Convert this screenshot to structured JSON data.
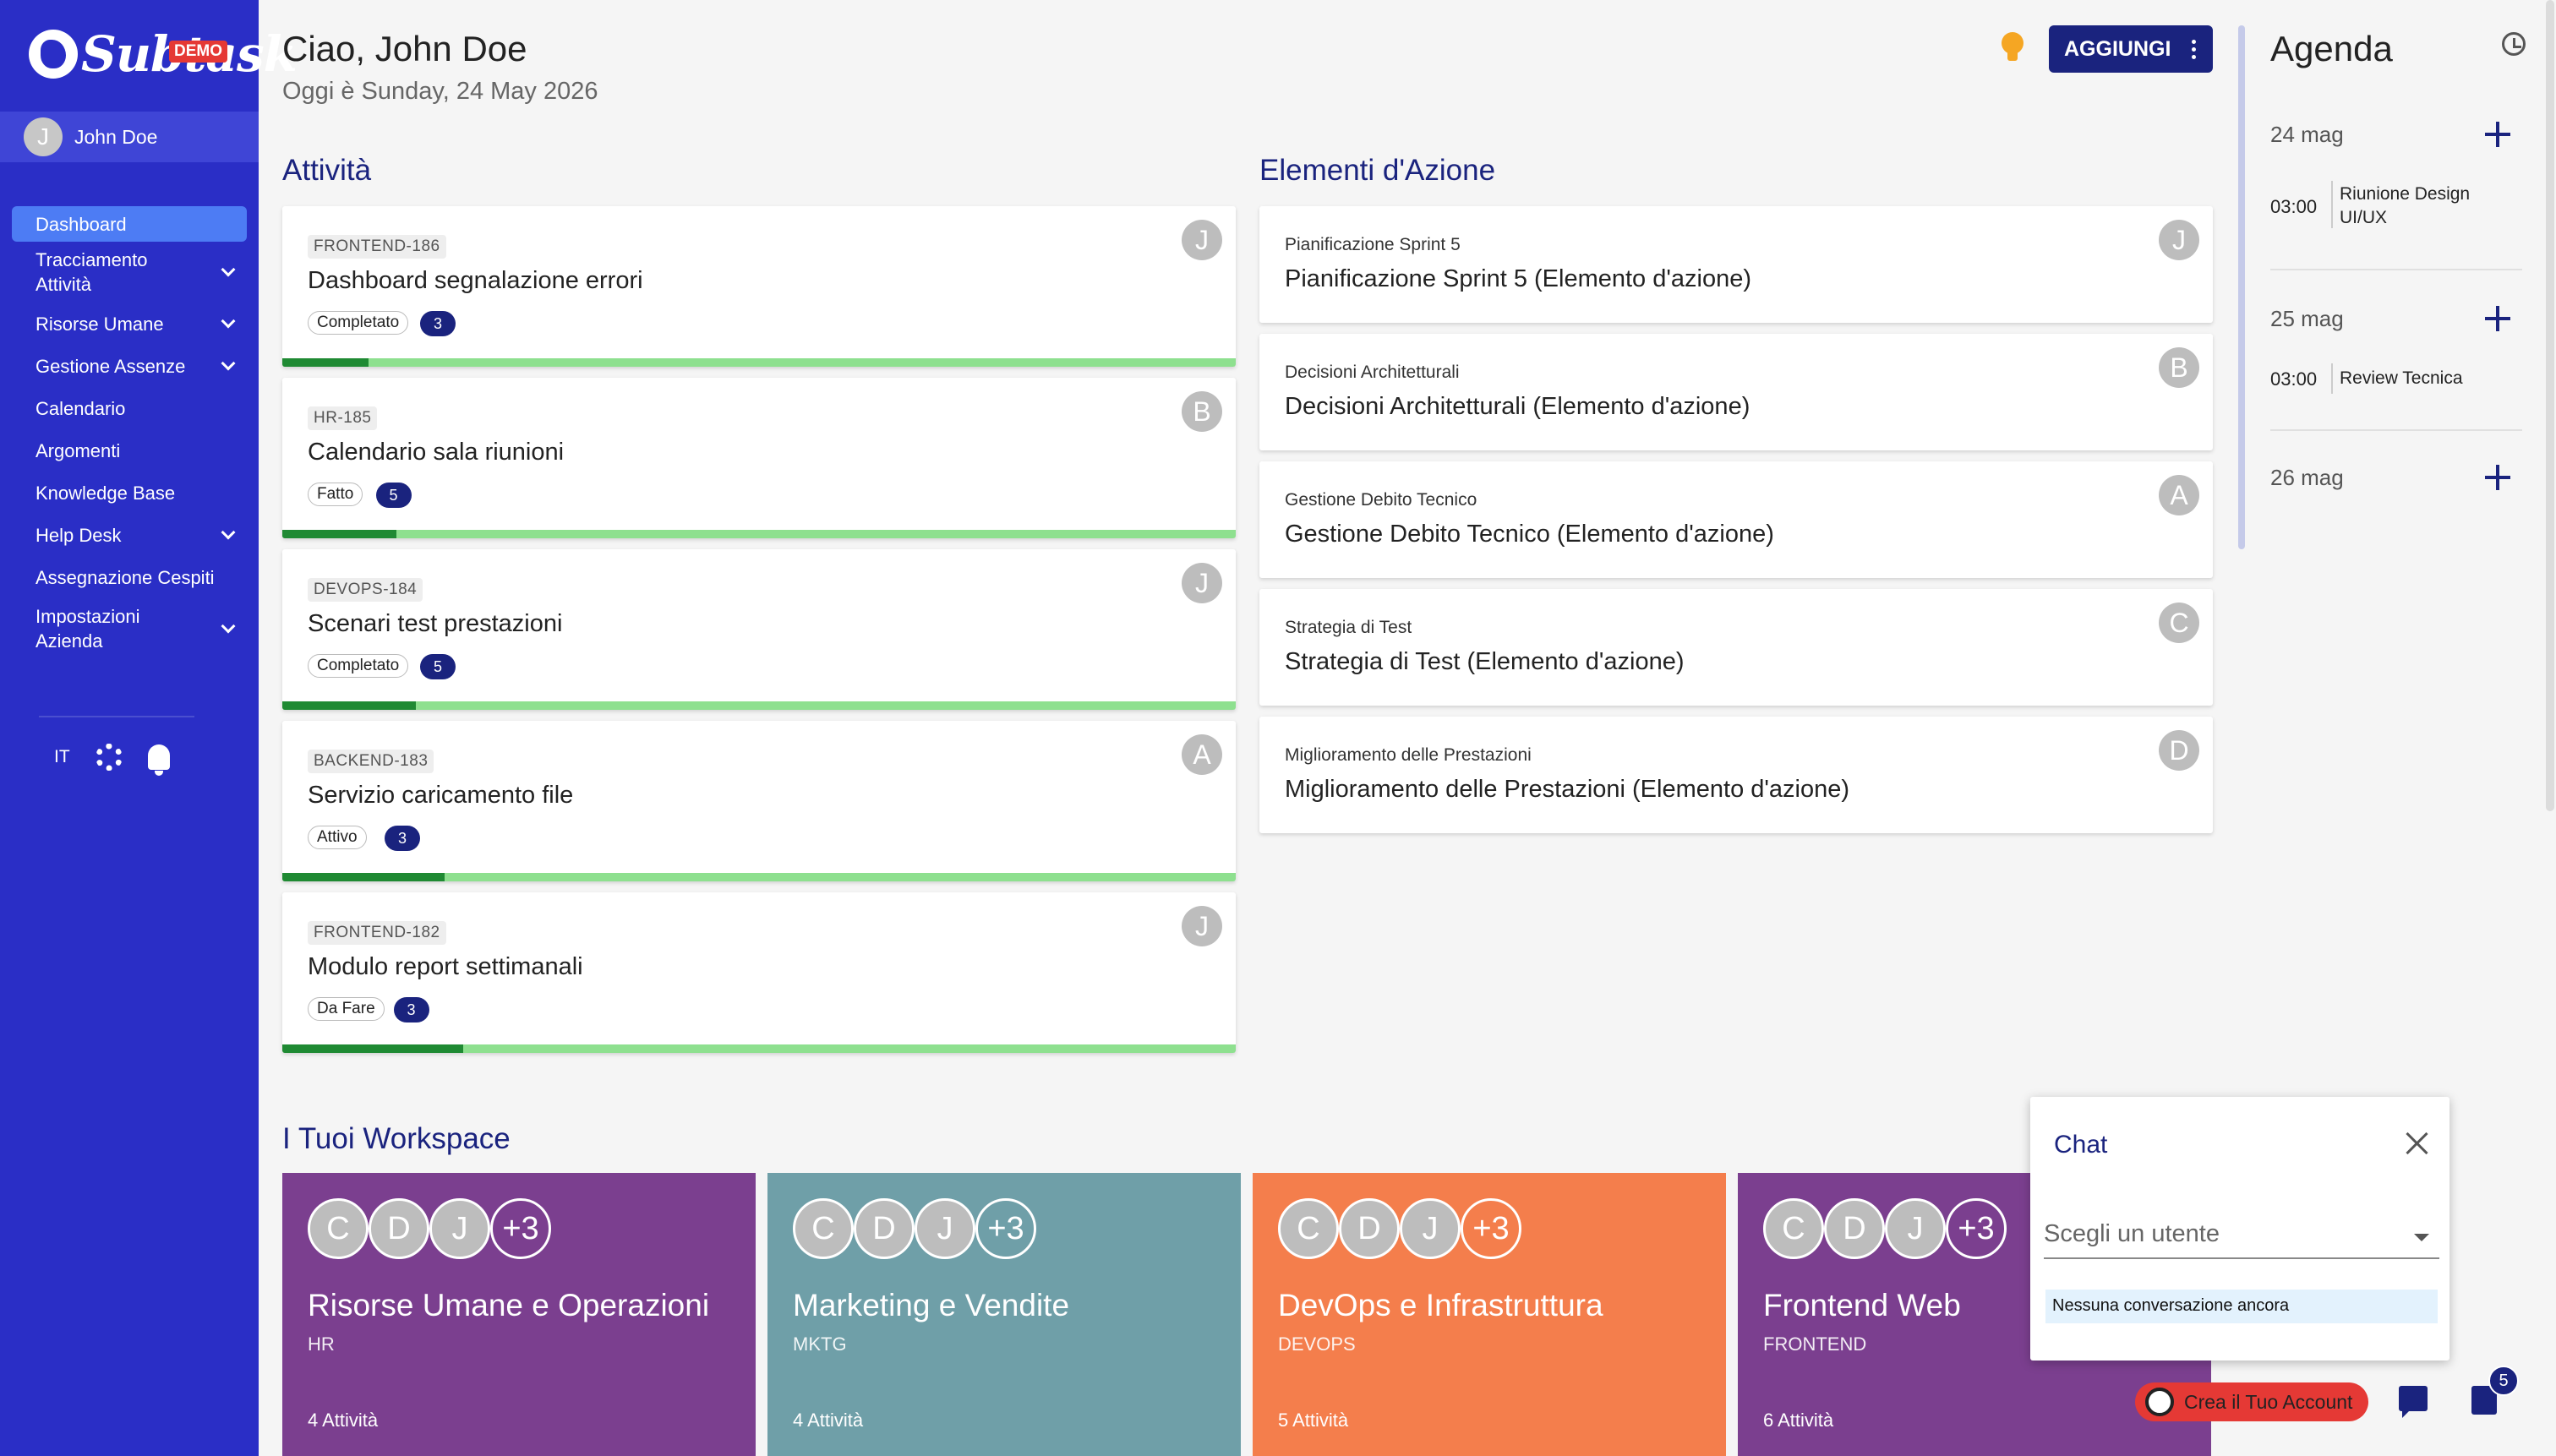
{
  "sidebar": {
    "logo_text": "Subtask",
    "logo_badge": "DEMO",
    "user": {
      "initial": "J",
      "name": "John Doe"
    },
    "items": [
      {
        "label": "Dashboard",
        "active": true
      },
      {
        "label": "Tracciamento Attività",
        "expandable": true
      },
      {
        "label": "Risorse Umane",
        "expandable": true
      },
      {
        "label": "Gestione Assenze",
        "expandable": true
      },
      {
        "label": "Calendario"
      },
      {
        "label": "Argomenti"
      },
      {
        "label": "Knowledge Base"
      },
      {
        "label": "Help Desk",
        "expandable": true
      },
      {
        "label": "Assegnazione Cespiti"
      },
      {
        "label": "Impostazioni Azienda",
        "expandable": true
      }
    ],
    "language": "IT"
  },
  "header": {
    "greeting": "Ciao, John Doe",
    "today": "Oggi è Sunday, 24 May 2026",
    "add_button": "AGGIUNGI"
  },
  "activities": {
    "title": "Attività",
    "items": [
      {
        "code": "FRONTEND-186",
        "title": "Dashboard segnalazione errori",
        "status": "Completato",
        "count": "3",
        "avatar": "J",
        "progress": 0.09
      },
      {
        "code": "HR-185",
        "title": "Calendario sala riunioni",
        "status": "Fatto",
        "count": "5",
        "avatar": "B",
        "progress": 0.12
      },
      {
        "code": "DEVOPS-184",
        "title": "Scenari test prestazioni",
        "status": "Completato",
        "count": "5",
        "avatar": "J",
        "progress": 0.14
      },
      {
        "code": "BACKEND-183",
        "title": "Servizio caricamento file",
        "status": "Attivo",
        "count": "3",
        "avatar": "A",
        "progress": 0.17
      },
      {
        "code": "FRONTEND-182",
        "title": "Modulo report settimanali",
        "status": "Da Fare",
        "count": "3",
        "avatar": "J",
        "progress": 0.19
      }
    ]
  },
  "action_items": {
    "title": "Elementi d'Azione",
    "items": [
      {
        "sub": "Pianificazione Sprint 5",
        "title": "Pianificazione Sprint 5 (Elemento d'azione)",
        "avatar": "J"
      },
      {
        "sub": "Decisioni Architetturali",
        "title": "Decisioni Architetturali (Elemento d'azione)",
        "avatar": "B"
      },
      {
        "sub": "Gestione Debito Tecnico",
        "title": "Gestione Debito Tecnico (Elemento d'azione)",
        "avatar": "A"
      },
      {
        "sub": "Strategia di Test",
        "title": "Strategia di Test (Elemento d'azione)",
        "avatar": "C"
      },
      {
        "sub": "Miglioramento delle Prestazioni",
        "title": "Miglioramento delle Prestazioni (Elemento d'azione)",
        "avatar": "D"
      }
    ]
  },
  "agenda": {
    "title": "Agenda",
    "days": [
      {
        "date": "24 mag",
        "events": [
          {
            "time": "03:00",
            "title": "Riunione Design UI/UX"
          }
        ]
      },
      {
        "date": "25 mag",
        "events": [
          {
            "time": "03:00",
            "title": "Review Tecnica"
          }
        ]
      },
      {
        "date": "26 mag",
        "events": []
      }
    ]
  },
  "workspaces": {
    "title": "I Tuoi Workspace",
    "items": [
      {
        "name": "Risorse Umane e Operazioni",
        "code": "HR",
        "count": "4 Attività",
        "color": "#7b3f8f",
        "members": [
          "C",
          "D",
          "J"
        ],
        "extra": "+3"
      },
      {
        "name": "Marketing e Vendite",
        "code": "MKTG",
        "count": "4 Attività",
        "color": "#6f9fa8",
        "members": [
          "C",
          "D",
          "J"
        ],
        "extra": "+3"
      },
      {
        "name": "DevOps e Infrastruttura",
        "code": "DEVOPS",
        "count": "5 Attività",
        "color": "#f47e4c",
        "members": [
          "C",
          "D",
          "J"
        ],
        "extra": "+3"
      },
      {
        "name": "Frontend Web",
        "code": "FRONTEND",
        "count": "6 Attività",
        "color": "#7b3f8f",
        "members": [
          "C",
          "D",
          "J"
        ],
        "extra": "+3"
      }
    ]
  },
  "chat": {
    "title": "Chat",
    "select_placeholder": "Scegli un utente",
    "empty_text": "Nessuna conversazione ancora"
  },
  "footer": {
    "create_account": "Crea il Tuo Account",
    "tasks_badge": "5"
  },
  "colors": {
    "sidebar": "#2a2ec6",
    "accent": "#1a237e",
    "progress_bg": "#8ee08f",
    "progress_fill": "#1f8a33",
    "danger": "#e53935"
  }
}
